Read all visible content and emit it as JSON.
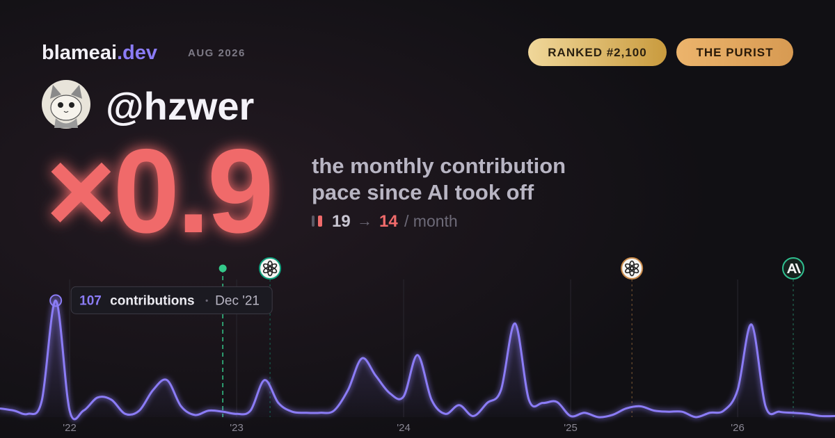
{
  "header": {
    "brand": "blameai",
    "brand_suffix": ".dev",
    "date": "AUG 2026",
    "badges": [
      "RANKED #2,100",
      "THE PURIST"
    ],
    "handle": "@hzwer"
  },
  "summary": {
    "multiplier": "×0.9",
    "description": [
      "the monthly contribution",
      "pace since AI took off"
    ],
    "before": 19,
    "arrow": "→",
    "after": 14,
    "unit": "/ month"
  },
  "tooltip": {
    "unit": "contributions",
    "date": "Dec '21"
  },
  "chart_data": {
    "type": "line",
    "x": [
      2021.583,
      2021.667,
      2021.75,
      2021.833,
      2021.917,
      2022,
      2022.083,
      2022.167,
      2022.25,
      2022.333,
      2022.417,
      2022.5,
      2022.583,
      2022.667,
      2022.75,
      2022.833,
      2022.917,
      2023,
      2023.083,
      2023.167,
      2023.25,
      2023.333,
      2023.417,
      2023.5,
      2023.583,
      2023.667,
      2023.75,
      2023.833,
      2023.917,
      2024,
      2024.083,
      2024.167,
      2024.25,
      2024.333,
      2024.417,
      2024.5,
      2024.583,
      2024.667,
      2024.75,
      2024.833,
      2024.917,
      2025,
      2025.083,
      2025.167,
      2025.25,
      2025.333,
      2025.417,
      2025.5,
      2025.583,
      2025.667,
      2025.75,
      2025.833,
      2025.917,
      2026,
      2026.083,
      2026.167,
      2026.25,
      2026.333,
      2026.417,
      2026.5,
      2026.583
    ],
    "series": [
      {
        "color": "#8b7cf6",
        "values": [
          8,
          6,
          3,
          15,
          107,
          6,
          6,
          18,
          16,
          3,
          6,
          25,
          34,
          10,
          2,
          6,
          5,
          3,
          6,
          34,
          13,
          5,
          4,
          4,
          6,
          25,
          54,
          38,
          22,
          19,
          57,
          16,
          3,
          11,
          1,
          13,
          25,
          86,
          16,
          13,
          14,
          1,
          4,
          0,
          2,
          8,
          10,
          6,
          5,
          5,
          0,
          4,
          6,
          25,
          85,
          10,
          5,
          4,
          3,
          1,
          1
        ]
      }
    ],
    "xlim": [
      2021.583,
      2026.583
    ],
    "ylim": [
      0,
      120
    ],
    "xticks": [
      {
        "value": 2022,
        "label": "'22"
      },
      {
        "value": 2023,
        "label": "'23"
      },
      {
        "value": 2024,
        "label": "'24"
      },
      {
        "value": 2025,
        "label": "'25"
      },
      {
        "value": 2026,
        "label": "'26"
      }
    ],
    "grid": true,
    "highlight": 4,
    "ai_start": 2022.917,
    "markers": [
      {
        "x": 2023.2,
        "color": "#10a37f"
      },
      {
        "x": 2025.367,
        "color": "#c98a4a"
      },
      {
        "x": 2026.333,
        "color": "#2fbf8f"
      }
    ]
  }
}
